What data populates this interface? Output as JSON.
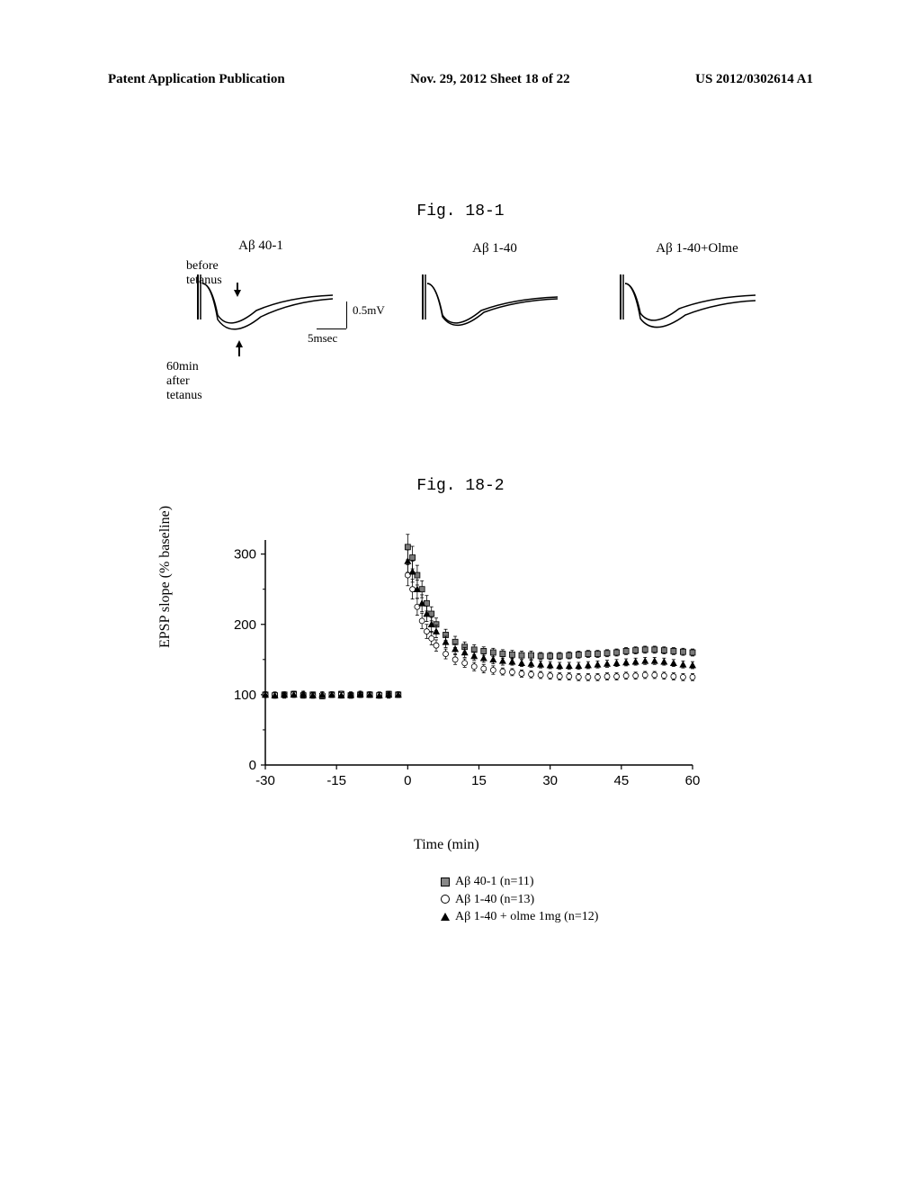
{
  "header": {
    "left": "Patent Application Publication",
    "center": "Nov. 29, 2012  Sheet 18 of 22",
    "right": "US 2012/0302614 A1"
  },
  "fig1": {
    "label": "Fig. 18-1",
    "traces": [
      {
        "title": "Aβ 40-1"
      },
      {
        "title": "Aβ 1-40"
      },
      {
        "title": "Aβ 1-40+Olme"
      }
    ],
    "before_annot": "before tetanus",
    "after_annot": "60min after tetanus",
    "scale_v": "0.5mV",
    "scale_h": "5msec"
  },
  "fig2": {
    "label": "Fig. 18-2",
    "type": "scatter-timecourse",
    "y_label": "EPSP slope (% baseline)",
    "x_label": "Time (min)",
    "xlim": [
      -30,
      60
    ],
    "ylim": [
      0,
      320
    ],
    "xticks": [
      -30,
      -15,
      0,
      15,
      30,
      45,
      60
    ],
    "yticks": [
      0,
      100,
      200,
      300
    ],
    "tick_fontsize": 15,
    "label_fontsize": 16,
    "background_color": "#ffffff",
    "axis_color": "#000000",
    "series": [
      {
        "name": "Aβ 40-1 (n=11)",
        "marker": "square",
        "color": "#7a7a7a",
        "border": "#000000",
        "x": [
          -30,
          -28,
          -26,
          -24,
          -22,
          -20,
          -18,
          -16,
          -14,
          -12,
          -10,
          -8,
          -6,
          -4,
          -2,
          0,
          1,
          2,
          3,
          4,
          5,
          6,
          8,
          10,
          12,
          14,
          16,
          18,
          20,
          22,
          24,
          26,
          28,
          30,
          32,
          34,
          36,
          38,
          40,
          42,
          44,
          46,
          48,
          50,
          52,
          54,
          56,
          58,
          60
        ],
        "y": [
          100,
          99,
          100,
          101,
          99,
          100,
          98,
          100,
          101,
          99,
          100,
          100,
          99,
          101,
          100,
          310,
          295,
          270,
          250,
          230,
          215,
          200,
          185,
          175,
          168,
          164,
          162,
          160,
          158,
          157,
          156,
          156,
          155,
          155,
          155,
          156,
          157,
          158,
          158,
          159,
          160,
          162,
          163,
          164,
          164,
          163,
          162,
          161,
          160
        ],
        "err": [
          4,
          4,
          4,
          4,
          4,
          4,
          4,
          4,
          4,
          4,
          4,
          4,
          4,
          4,
          4,
          18,
          16,
          14,
          12,
          11,
          10,
          9,
          8,
          8,
          7,
          7,
          6,
          6,
          6,
          6,
          6,
          6,
          5,
          5,
          5,
          5,
          5,
          5,
          5,
          5,
          5,
          5,
          5,
          5,
          5,
          5,
          5,
          5,
          5
        ]
      },
      {
        "name": "Aβ 1-40 (n=13)",
        "marker": "circle",
        "color": "#ffffff",
        "border": "#000000",
        "x": [
          -30,
          -28,
          -26,
          -24,
          -22,
          -20,
          -18,
          -16,
          -14,
          -12,
          -10,
          -8,
          -6,
          -4,
          -2,
          0,
          1,
          2,
          3,
          4,
          5,
          6,
          8,
          10,
          12,
          14,
          16,
          18,
          20,
          22,
          24,
          26,
          28,
          30,
          32,
          34,
          36,
          38,
          40,
          42,
          44,
          46,
          48,
          50,
          52,
          54,
          56,
          58,
          60
        ],
        "y": [
          100,
          100,
          99,
          101,
          100,
          99,
          100,
          100,
          101,
          99,
          100,
          100,
          100,
          99,
          100,
          270,
          250,
          225,
          205,
          190,
          180,
          170,
          158,
          150,
          145,
          140,
          137,
          135,
          133,
          132,
          130,
          129,
          128,
          127,
          126,
          126,
          125,
          125,
          125,
          126,
          126,
          127,
          127,
          128,
          128,
          127,
          126,
          125,
          125
        ],
        "err": [
          4,
          4,
          4,
          4,
          4,
          4,
          4,
          4,
          4,
          4,
          4,
          4,
          4,
          4,
          4,
          15,
          14,
          12,
          11,
          10,
          9,
          8,
          7,
          7,
          6,
          6,
          6,
          6,
          5,
          5,
          5,
          5,
          5,
          5,
          5,
          5,
          5,
          5,
          5,
          5,
          5,
          5,
          5,
          5,
          5,
          5,
          5,
          5,
          5
        ]
      },
      {
        "name": "Aβ 1-40 + olme 1mg (n=12)",
        "marker": "triangle",
        "color": "#000000",
        "border": "#000000",
        "x": [
          -30,
          -28,
          -26,
          -24,
          -22,
          -20,
          -18,
          -16,
          -14,
          -12,
          -10,
          -8,
          -6,
          -4,
          -2,
          0,
          1,
          2,
          3,
          4,
          5,
          6,
          8,
          10,
          12,
          14,
          16,
          18,
          20,
          22,
          24,
          26,
          28,
          30,
          32,
          34,
          36,
          38,
          40,
          42,
          44,
          46,
          48,
          50,
          52,
          54,
          56,
          58,
          60
        ],
        "y": [
          100,
          99,
          100,
          100,
          101,
          99,
          100,
          100,
          99,
          100,
          101,
          100,
          99,
          100,
          100,
          290,
          275,
          250,
          230,
          215,
          200,
          190,
          175,
          165,
          160,
          155,
          152,
          150,
          148,
          147,
          145,
          144,
          143,
          142,
          141,
          141,
          141,
          142,
          143,
          144,
          145,
          146,
          147,
          148,
          148,
          147,
          145,
          143,
          142
        ],
        "err": [
          4,
          4,
          4,
          4,
          4,
          4,
          4,
          4,
          4,
          4,
          4,
          4,
          4,
          4,
          4,
          16,
          15,
          13,
          12,
          11,
          10,
          9,
          8,
          7,
          7,
          6,
          6,
          6,
          6,
          5,
          5,
          5,
          5,
          5,
          5,
          5,
          5,
          5,
          5,
          5,
          5,
          5,
          5,
          5,
          5,
          5,
          5,
          5,
          5
        ]
      }
    ],
    "legend": [
      {
        "marker": "square",
        "label": "Aβ 40-1  (n=11)"
      },
      {
        "marker": "circle",
        "label": "Aβ 1-40  (n=13)"
      },
      {
        "marker": "triangle",
        "label": "Aβ 1-40 + olme 1mg (n=12)"
      }
    ]
  }
}
